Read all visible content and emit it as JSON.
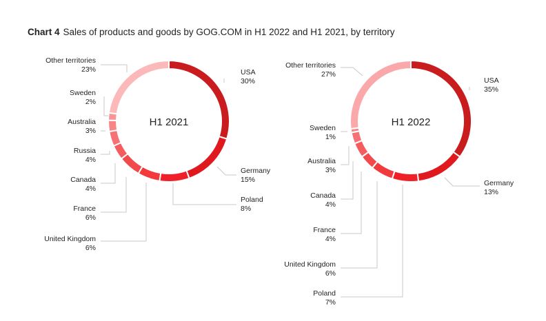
{
  "title": {
    "chart_number": "Chart 4",
    "text": "Sales of products and goods by GOG.COM in H1 2022 and H1 2021, by territory"
  },
  "chart_data": [
    {
      "type": "pie",
      "title": "H1 2021",
      "donut": true,
      "slices": [
        {
          "label": "USA",
          "value": 30,
          "value_label": "30%",
          "color": "#c81c1e"
        },
        {
          "label": "Germany",
          "value": 15,
          "value_label": "15%",
          "color": "#e0191f"
        },
        {
          "label": "Poland",
          "value": 8,
          "value_label": "8%",
          "color": "#ef2028"
        },
        {
          "label": "United Kingdom",
          "value": 6,
          "value_label": "6%",
          "color": "#f23a3c"
        },
        {
          "label": "France",
          "value": 6,
          "value_label": "6%",
          "color": "#f24a4c"
        },
        {
          "label": "Canada",
          "value": 4,
          "value_label": "4%",
          "color": "#f45c5e"
        },
        {
          "label": "Russia",
          "value": 4,
          "value_label": "4%",
          "color": "#f57173"
        },
        {
          "label": "Australia",
          "value": 3,
          "value_label": "3%",
          "color": "#f78587"
        },
        {
          "label": "Sweden",
          "value": 2,
          "value_label": "2%",
          "color": "#f99597"
        },
        {
          "label": "Other territories",
          "value": 23,
          "value_label": "23%",
          "color": "#fbb9ba"
        }
      ]
    },
    {
      "type": "pie",
      "title": "H1 2022",
      "donut": true,
      "slices": [
        {
          "label": "USA",
          "value": 35,
          "value_label": "35%",
          "color": "#c81c1e"
        },
        {
          "label": "Germany",
          "value": 13,
          "value_label": "13%",
          "color": "#e0191f"
        },
        {
          "label": "Poland",
          "value": 7,
          "value_label": "7%",
          "color": "#ef2028"
        },
        {
          "label": "United Kingdom",
          "value": 6,
          "value_label": "6%",
          "color": "#f23a3c"
        },
        {
          "label": "France",
          "value": 4,
          "value_label": "4%",
          "color": "#f24a4c"
        },
        {
          "label": "Canada",
          "value": 4,
          "value_label": "4%",
          "color": "#f45c5e"
        },
        {
          "label": "Australia",
          "value": 3,
          "value_label": "3%",
          "color": "#f57173"
        },
        {
          "label": "Sweden",
          "value": 1,
          "value_label": "1%",
          "color": "#f78587"
        },
        {
          "label": "Other territories",
          "value": 27,
          "value_label": "27%",
          "color": "#fba8aa"
        }
      ]
    }
  ]
}
